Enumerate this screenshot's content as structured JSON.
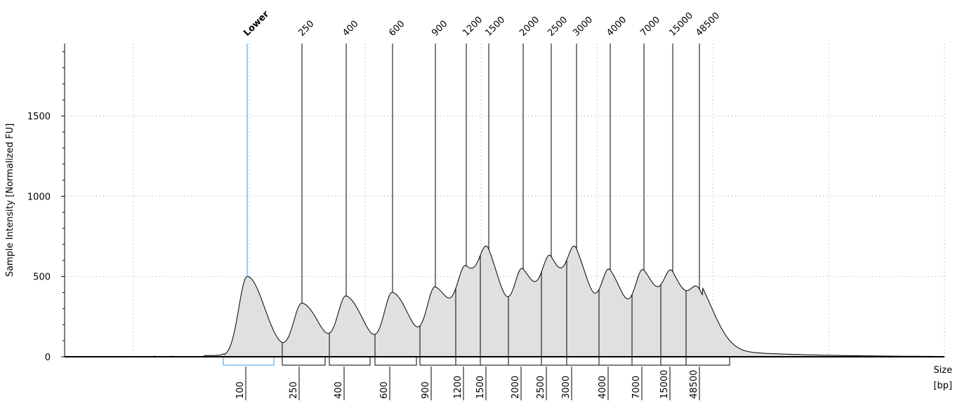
{
  "chart_data": {
    "type": "electropherogram",
    "ylabel": "Sample Intensity [Normalized FU]",
    "xlabel": [
      "Size",
      "[bp]"
    ],
    "ylim": [
      0,
      1950
    ],
    "yticks": [
      0,
      500,
      1000,
      1500
    ],
    "grid": "dotted",
    "peaks": [
      {
        "label": "Lower",
        "size": 100,
        "intensity": 500,
        "marker": true
      },
      {
        "label": "250",
        "size": 250,
        "intensity": 330
      },
      {
        "label": "400",
        "size": 400,
        "intensity": 365
      },
      {
        "label": "600",
        "size": 600,
        "intensity": 390
      },
      {
        "label": "900",
        "size": 900,
        "intensity": 415
      },
      {
        "label": "1200",
        "size": 1200,
        "intensity": 465
      },
      {
        "label": "1500",
        "size": 1500,
        "intensity": 460
      },
      {
        "label": "2000",
        "size": 2000,
        "intensity": 475
      },
      {
        "label": "2500",
        "size": 2500,
        "intensity": 485
      },
      {
        "label": "3000",
        "size": 3000,
        "intensity": 495
      },
      {
        "label": "4000",
        "size": 4000,
        "intensity": 460
      },
      {
        "label": "7000",
        "size": 7000,
        "intensity": 465
      },
      {
        "label": "15000",
        "size": 15000,
        "intensity": 405
      },
      {
        "label": "48500",
        "size": 48500,
        "intensity": 290
      }
    ],
    "x_tick_labels": [
      "100",
      "250",
      "400",
      "600",
      "900",
      "1200",
      "1500",
      "2000",
      "2500",
      "3000",
      "4000",
      "7000",
      "15000",
      "48500"
    ],
    "colors": {
      "trace": "#000000",
      "fill": "#e0e0e0",
      "marker": "#3399ff",
      "grid": "#a0a0a0"
    }
  }
}
